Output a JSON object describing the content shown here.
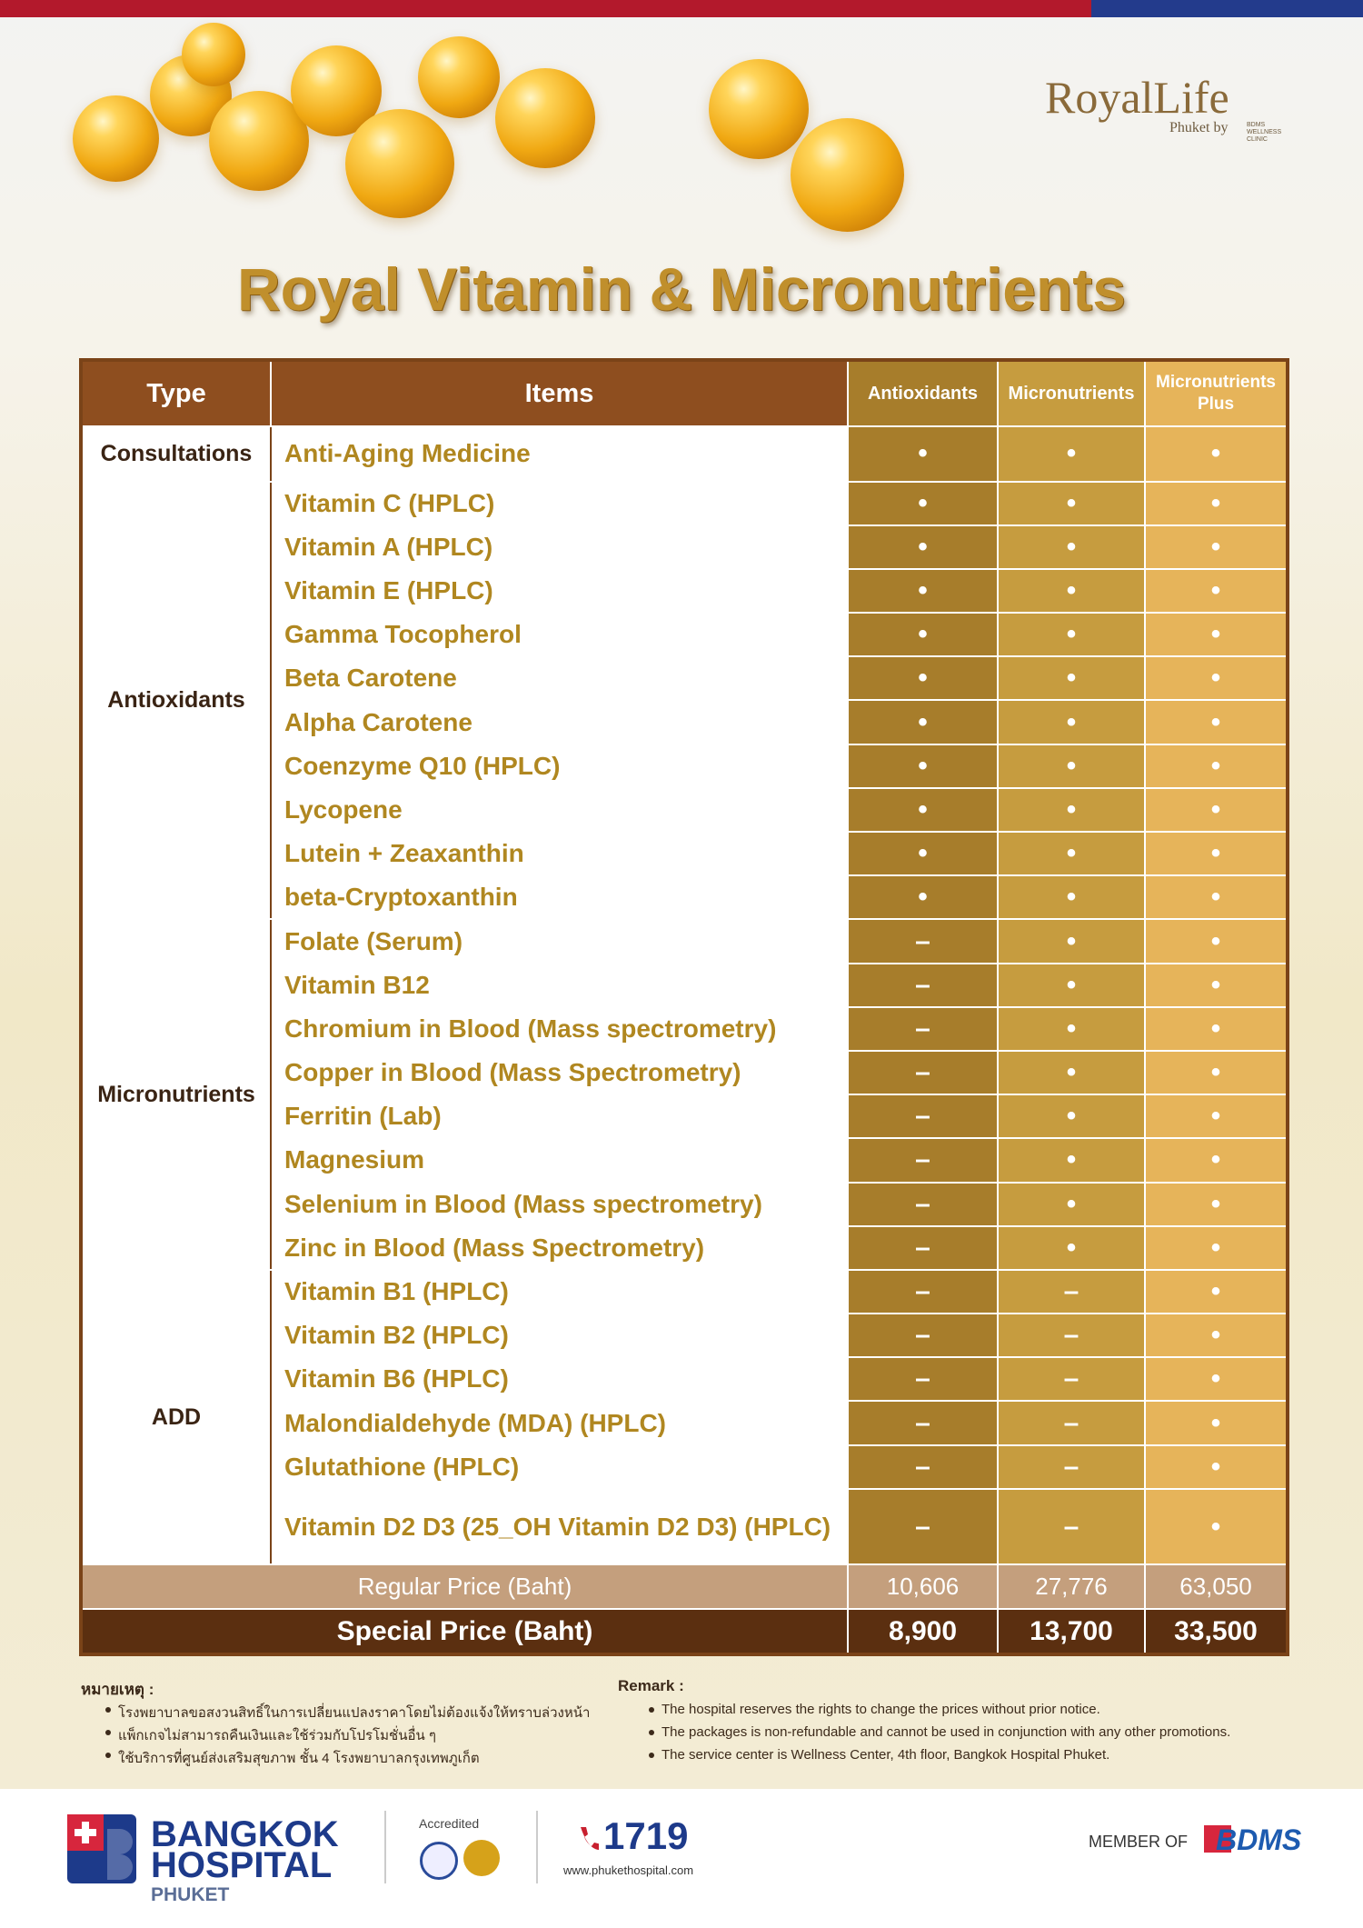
{
  "header": {
    "logo": "RoyalLife",
    "logo_sub": "Phuket by",
    "logo_clinic": "BDMS WELLNESS CLINIC",
    "title": "Royal Vitamin & Micronutrients"
  },
  "table": {
    "columns": [
      "Type",
      "Items",
      "Antioxidants",
      "Micronutrients",
      "Micronutrients Plus"
    ],
    "groups": [
      {
        "type": "Consultations",
        "rows": [
          {
            "item": "Anti-Aging Medicine",
            "marks": [
              "•",
              "•",
              "•"
            ]
          }
        ]
      },
      {
        "type": "Antioxidants",
        "rows": [
          {
            "item": "Vitamin C (HPLC)",
            "marks": [
              "•",
              "•",
              "•"
            ]
          },
          {
            "item": "Vitamin A (HPLC)",
            "marks": [
              "•",
              "•",
              "•"
            ]
          },
          {
            "item": "Vitamin E (HPLC)",
            "marks": [
              "•",
              "•",
              "•"
            ]
          },
          {
            "item": "Gamma Tocopherol",
            "marks": [
              "•",
              "•",
              "•"
            ]
          },
          {
            "item": "Beta Carotene",
            "marks": [
              "•",
              "•",
              "•"
            ]
          },
          {
            "item": "Alpha Carotene",
            "marks": [
              "•",
              "•",
              "•"
            ]
          },
          {
            "item": "Coenzyme Q10 (HPLC)",
            "marks": [
              "•",
              "•",
              "•"
            ]
          },
          {
            "item": "Lycopene",
            "marks": [
              "•",
              "•",
              "•"
            ]
          },
          {
            "item": "Lutein + Zeaxanthin",
            "marks": [
              "•",
              "•",
              "•"
            ]
          },
          {
            "item": "beta-Cryptoxanthin",
            "marks": [
              "•",
              "•",
              "•"
            ]
          }
        ]
      },
      {
        "type": "Micronutrients",
        "rows": [
          {
            "item": "Folate (Serum)",
            "marks": [
              "–",
              "•",
              "•"
            ]
          },
          {
            "item": "Vitamin B12",
            "marks": [
              "–",
              "•",
              "•"
            ]
          },
          {
            "item": "Chromium in Blood (Mass spectrometry)",
            "marks": [
              "–",
              "•",
              "•"
            ]
          },
          {
            "item": "Copper in Blood (Mass Spectrometry)",
            "marks": [
              "–",
              "•",
              "•"
            ]
          },
          {
            "item": "Ferritin (Lab)",
            "marks": [
              "–",
              "•",
              "•"
            ]
          },
          {
            "item": "Magnesium",
            "marks": [
              "–",
              "•",
              "•"
            ]
          },
          {
            "item": "Selenium in Blood (Mass spectrometry)",
            "marks": [
              "–",
              "•",
              "•"
            ]
          },
          {
            "item": "Zinc in Blood (Mass Spectrometry)",
            "marks": [
              "–",
              "•",
              "•"
            ]
          }
        ]
      },
      {
        "type": "ADD",
        "rows": [
          {
            "item": "Vitamin B1 (HPLC)",
            "marks": [
              "–",
              "–",
              "•"
            ]
          },
          {
            "item": "Vitamin B2 (HPLC)",
            "marks": [
              "–",
              "–",
              "•"
            ]
          },
          {
            "item": "Vitamin B6 (HPLC)",
            "marks": [
              "–",
              "–",
              "•"
            ]
          },
          {
            "item": "Malondialdehyde (MDA) (HPLC)",
            "marks": [
              "–",
              "–",
              "•"
            ]
          },
          {
            "item": "Glutathione (HPLC)",
            "marks": [
              "–",
              "–",
              "•"
            ]
          },
          {
            "item": "Vitamin D2 D3 (25_OH Vitamin D2 D3) (HPLC)",
            "marks": [
              "–",
              "–",
              "•"
            ]
          }
        ]
      }
    ],
    "regular_price": {
      "label": "Regular Price (Baht)",
      "values": [
        "10,606",
        "27,776",
        "63,050"
      ]
    },
    "special_price": {
      "label": "Special Price (Baht)",
      "values": [
        "8,900",
        "13,700",
        "33,500"
      ]
    }
  },
  "remarks": {
    "thai_title": "หมายเหตุ :",
    "thai_items": [
      "โรงพยาบาลขอสงวนสิทธิ์ในการเปลี่ยนแปลงราคาโดยไม่ต้องแจ้งให้ทราบล่วงหน้า",
      "แพ็กเกจไม่สามารถคืนเงินและใช้ร่วมกับโปรโมชั่นอื่น ๆ",
      "ใช้บริการที่ศูนย์ส่งเสริมสุขภาพ ชั้น 4 โรงพยาบาลกรุงเทพภูเก็ต"
    ],
    "title": "Remark :",
    "items": [
      "The hospital reserves the rights to change the prices without prior notice.",
      "The packages is non-refundable and cannot be used in conjunction with any other promotions.",
      "The service center is Wellness Center, 4th floor, Bangkok Hospital Phuket."
    ]
  },
  "footer": {
    "brand_1": "BANGKOK",
    "brand_2": "HOSPITAL",
    "brand_3": "PHUKET",
    "accredited": "Accredited",
    "phone": "1719",
    "website": "www.phukethospital.com",
    "member": "MEMBER OF",
    "bdms": "BDMS"
  }
}
